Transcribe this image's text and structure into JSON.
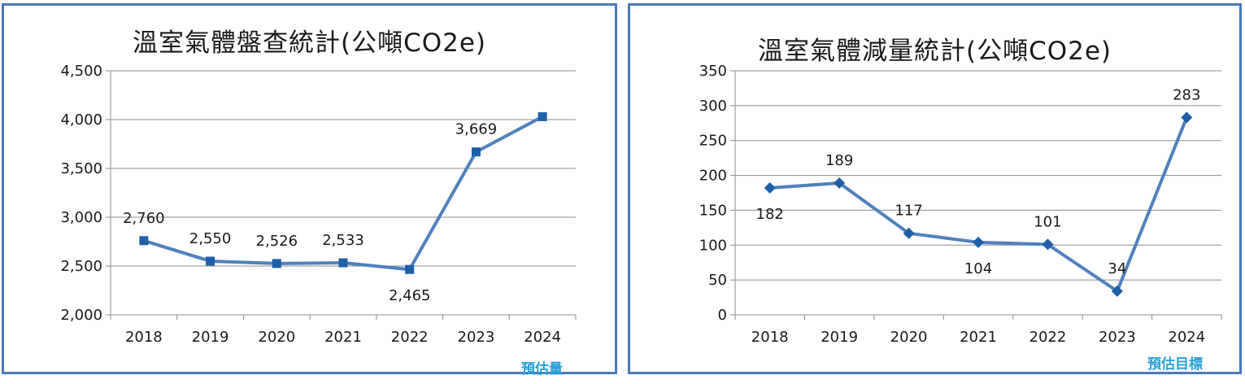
{
  "chart_data": [
    {
      "type": "line",
      "title": "溫室氣體盤查統計(公噸CO2e)",
      "categories": [
        "2018",
        "2019",
        "2020",
        "2021",
        "2022",
        "2023",
        "2024"
      ],
      "values": [
        2760,
        2550,
        2526,
        2533,
        2465,
        3669,
        4030
      ],
      "data_labels": [
        "2,760",
        "2,550",
        "2,526",
        "2,533",
        "2,465",
        "3,669",
        null
      ],
      "label_pos": [
        "above",
        "above",
        "above",
        "above",
        "below",
        "above",
        null
      ],
      "ylim": [
        2000,
        4500
      ],
      "yticks": [
        2000,
        2500,
        3000,
        3500,
        4000,
        4500
      ],
      "ytick_labels": [
        "2,000",
        "2,500",
        "3,000",
        "3,500",
        "4,000",
        "4,500"
      ],
      "marker": "square",
      "grid": true,
      "color": "#4f81bd",
      "note": "預估量"
    },
    {
      "type": "line",
      "title": "溫室氣體減量統計(公噸CO2e)",
      "categories": [
        "2018",
        "2019",
        "2020",
        "2021",
        "2022",
        "2023",
        "2024"
      ],
      "values": [
        182,
        189,
        117,
        104,
        101,
        34,
        283
      ],
      "data_labels": [
        "182",
        "189",
        "117",
        "104",
        "101",
        "34",
        "283"
      ],
      "label_pos": [
        "below",
        "above",
        "above",
        "below",
        "above",
        "above",
        "above"
      ],
      "ylim": [
        0,
        350
      ],
      "yticks": [
        0,
        50,
        100,
        150,
        200,
        250,
        300,
        350
      ],
      "ytick_labels": [
        "0",
        "50",
        "100",
        "150",
        "200",
        "250",
        "300",
        "350"
      ],
      "marker": "diamond",
      "grid": true,
      "color": "#4f81bd",
      "note": "預估目標"
    }
  ]
}
